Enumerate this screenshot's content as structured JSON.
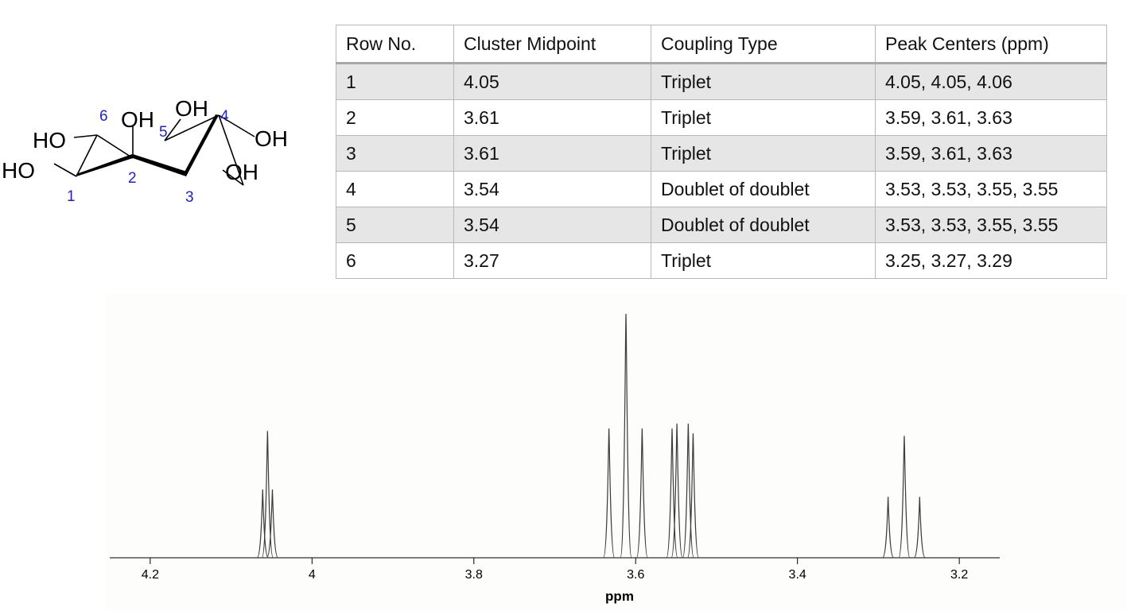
{
  "structure": {
    "labels": {
      "oh_top_left": "OH",
      "oh_top_right": "OH",
      "oh_right": "OH",
      "oh_bottom_right": "OH",
      "ho_left": "HO",
      "ho_bottom_left": "HO"
    },
    "numbers": [
      "1",
      "2",
      "3",
      "4",
      "5",
      "6"
    ],
    "number_color": "#1f1fd0"
  },
  "table": {
    "headers": [
      "Row No.",
      "Cluster Midpoint",
      "Coupling Type",
      "Peak Centers (ppm)"
    ],
    "rows": [
      [
        "1",
        "4.05",
        "Triplet",
        "4.05, 4.05, 4.06"
      ],
      [
        "2",
        "3.61",
        "Triplet",
        "3.59, 3.61, 3.63"
      ],
      [
        "3",
        "3.61",
        "Triplet",
        "3.59, 3.61, 3.63"
      ],
      [
        "4",
        "3.54",
        "Doublet of doublet",
        "3.53, 3.53, 3.55, 3.55"
      ],
      [
        "5",
        "3.54",
        "Doublet of doublet",
        "3.53, 3.53, 3.55, 3.55"
      ],
      [
        "6",
        "3.27",
        "Triplet",
        "3.25, 3.27, 3.29"
      ]
    ]
  },
  "chart_data": {
    "type": "line",
    "xlabel": "ppm",
    "ylabel": "",
    "x_reversed": true,
    "xlim": [
      4.25,
      3.15
    ],
    "xticks": [
      4.2,
      4,
      3.8,
      3.6,
      3.4,
      3.2
    ],
    "xtick_labels": [
      "4.2",
      "4",
      "3.8",
      "3.6",
      "3.4",
      "3.2"
    ],
    "ylim": [
      0,
      1.0
    ],
    "grid": false,
    "line_color": "#3c3c3c",
    "peaks": [
      {
        "ppm": 4.061,
        "height": 0.28
      },
      {
        "ppm": 4.055,
        "height": 0.52
      },
      {
        "ppm": 4.049,
        "height": 0.28
      },
      {
        "ppm": 3.633,
        "height": 0.53
      },
      {
        "ppm": 3.612,
        "height": 1.0
      },
      {
        "ppm": 3.592,
        "height": 0.53
      },
      {
        "ppm": 3.555,
        "height": 0.53
      },
      {
        "ppm": 3.549,
        "height": 0.55
      },
      {
        "ppm": 3.535,
        "height": 0.55
      },
      {
        "ppm": 3.529,
        "height": 0.51
      },
      {
        "ppm": 3.288,
        "height": 0.25
      },
      {
        "ppm": 3.268,
        "height": 0.5
      },
      {
        "ppm": 3.249,
        "height": 0.25
      }
    ]
  }
}
